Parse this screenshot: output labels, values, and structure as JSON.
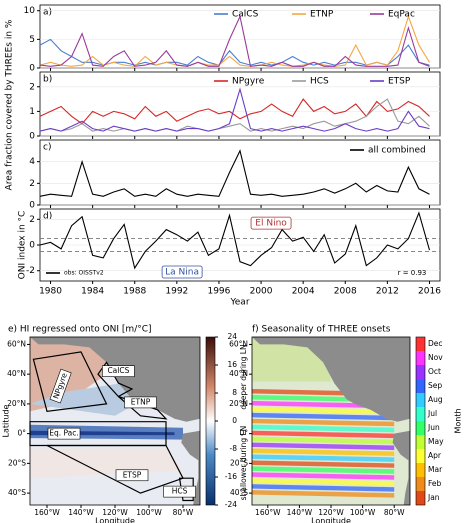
{
  "ylabel_top": "Area fraction covered by THREEs in %",
  "chart_data": [
    {
      "type": "line",
      "title": "a)",
      "xlim": [
        1979,
        2017
      ],
      "ylim": [
        0,
        11
      ],
      "yticks": [
        0,
        5,
        10
      ],
      "legend": "top",
      "x": [
        1979,
        1980,
        1981,
        1982,
        1983,
        1984,
        1985,
        1986,
        1987,
        1988,
        1989,
        1990,
        1991,
        1992,
        1993,
        1994,
        1995,
        1996,
        1997,
        1998,
        1999,
        2000,
        2001,
        2002,
        2003,
        2004,
        2005,
        2006,
        2007,
        2008,
        2009,
        2010,
        2011,
        2012,
        2013,
        2014,
        2015,
        2016
      ],
      "series": [
        {
          "name": "CalCS",
          "color": "#4a7fd4",
          "values": [
            4,
            5,
            3,
            2,
            1,
            1,
            0.5,
            1,
            1,
            0.5,
            1,
            0.5,
            1,
            1,
            0.5,
            2,
            1,
            0.5,
            3,
            1,
            0.5,
            1,
            0.5,
            1,
            2,
            1,
            0.5,
            1,
            0.5,
            1,
            1,
            0.5,
            1,
            0.5,
            2,
            4,
            1,
            0.5
          ]
        },
        {
          "name": "ETNP",
          "color": "#f5a742",
          "values": [
            0.5,
            1,
            0.5,
            0.3,
            0.5,
            2,
            0.5,
            1,
            0.5,
            0.3,
            2,
            0.5,
            1,
            0.5,
            0.3,
            1,
            0.5,
            0.5,
            2,
            0.5,
            0.3,
            0.5,
            1,
            0.5,
            0.3,
            0.5,
            1,
            0.5,
            0.3,
            0.5,
            4,
            0.5,
            1,
            0.5,
            3,
            9,
            4,
            1
          ]
        },
        {
          "name": "EqPac",
          "color": "#9b3a9b",
          "values": [
            0.5,
            0.3,
            0.5,
            2,
            6,
            0.5,
            0.3,
            2,
            3,
            0.3,
            0.5,
            1,
            3,
            0.5,
            0.3,
            1,
            0.3,
            0.3,
            5,
            9,
            0.3,
            0.5,
            0.3,
            1,
            0.3,
            0.3,
            1,
            0.3,
            0.3,
            2,
            0.5,
            0.3,
            0.3,
            0.3,
            0.5,
            7,
            1,
            0.3
          ]
        }
      ]
    },
    {
      "type": "line",
      "title": "b)",
      "xlim": [
        1979,
        2017
      ],
      "ylim": [
        0,
        2.6
      ],
      "yticks": [
        0,
        1,
        2
      ],
      "legend": "top",
      "x": [
        1979,
        1980,
        1981,
        1982,
        1983,
        1984,
        1985,
        1986,
        1987,
        1988,
        1989,
        1990,
        1991,
        1992,
        1993,
        1994,
        1995,
        1996,
        1997,
        1998,
        1999,
        2000,
        2001,
        2002,
        2003,
        2004,
        2005,
        2006,
        2007,
        2008,
        2009,
        2010,
        2011,
        2012,
        2013,
        2014,
        2015,
        2016
      ],
      "series": [
        {
          "name": "NPgyre",
          "color": "#d62728",
          "values": [
            0.8,
            1,
            1.2,
            0.8,
            0.5,
            1,
            0.8,
            1,
            0.9,
            0.7,
            1.2,
            0.8,
            1,
            0.6,
            0.8,
            1,
            1.1,
            0.9,
            1,
            0.7,
            0.9,
            1,
            1.3,
            1,
            0.8,
            1.5,
            1,
            1.2,
            0.9,
            1,
            1.3,
            0.8,
            1.4,
            1,
            1.1,
            1.4,
            1.2,
            0.8
          ]
        },
        {
          "name": "HCS",
          "color": "#999999",
          "values": [
            0.2,
            0.3,
            0.2,
            0.3,
            0.5,
            0.2,
            0.3,
            0.2,
            0.3,
            0.2,
            0.3,
            0.2,
            0.3,
            0.2,
            0.4,
            0.3,
            0.2,
            0.3,
            0.4,
            0.5,
            0.2,
            0.3,
            0.2,
            0.3,
            0.4,
            0.3,
            0.5,
            0.6,
            0.4,
            0.5,
            0.6,
            0.8,
            1.2,
            1.5,
            0.6,
            0.5,
            0.8,
            0.4
          ]
        },
        {
          "name": "ETSP",
          "color": "#6a3cc9",
          "values": [
            0.2,
            0.3,
            0.2,
            0.4,
            0.6,
            0.3,
            0.2,
            0.4,
            0.3,
            0.2,
            0.3,
            0.2,
            0.3,
            0.2,
            0.3,
            0.3,
            0.2,
            0.3,
            0.5,
            1.9,
            0.3,
            0.2,
            0.3,
            0.2,
            0.3,
            0.4,
            0.3,
            0.2,
            0.3,
            0.5,
            0.3,
            0.2,
            0.3,
            0.2,
            0.3,
            1,
            0.4,
            0.3
          ]
        }
      ]
    },
    {
      "type": "line",
      "title": "c)",
      "xlim": [
        1979,
        2017
      ],
      "ylim": [
        0,
        6
      ],
      "yticks": [
        0,
        2,
        4
      ],
      "legend": "right",
      "x": [
        1979,
        1980,
        1981,
        1982,
        1983,
        1984,
        1985,
        1986,
        1987,
        1988,
        1989,
        1990,
        1991,
        1992,
        1993,
        1994,
        1995,
        1996,
        1997,
        1998,
        1999,
        2000,
        2001,
        2002,
        2003,
        2004,
        2005,
        2006,
        2007,
        2008,
        2009,
        2010,
        2011,
        2012,
        2013,
        2014,
        2015,
        2016
      ],
      "series": [
        {
          "name": "all combined",
          "color": "#000000",
          "values": [
            0.8,
            1,
            0.9,
            0.8,
            4,
            1,
            0.8,
            1.2,
            1.5,
            0.8,
            1,
            0.8,
            1.5,
            1,
            0.8,
            1,
            0.9,
            0.8,
            3,
            5,
            1,
            0.9,
            1,
            0.8,
            0.9,
            1,
            1.2,
            1.5,
            1.1,
            1.5,
            2,
            1.2,
            1.8,
            1.3,
            1.2,
            3.5,
            1.5,
            1
          ]
        }
      ]
    },
    {
      "type": "line",
      "title": "d)",
      "ylabel": "ONI index in °C",
      "xlabel": "Year",
      "xlim": [
        1979,
        2017
      ],
      "ylim": [
        -2.8,
        2.8
      ],
      "yticks": [
        -2,
        0,
        2
      ],
      "xticks": [
        1980,
        1984,
        1988,
        1992,
        1996,
        2000,
        2004,
        2008,
        2012,
        2016
      ],
      "legend": "bottom-left",
      "reference_lines": [
        -0.5,
        0.5
      ],
      "annotations": [
        "El Nino",
        "La Nina",
        "r = 0.93"
      ],
      "x": [
        1979,
        1980,
        1981,
        1982,
        1983,
        1984,
        1985,
        1986,
        1987,
        1988,
        1989,
        1990,
        1991,
        1992,
        1993,
        1994,
        1995,
        1996,
        1997,
        1998,
        1999,
        2000,
        2001,
        2002,
        2003,
        2004,
        2005,
        2006,
        2007,
        2008,
        2009,
        2010,
        2011,
        2012,
        2013,
        2014,
        2015,
        2016
      ],
      "series": [
        {
          "name": "obs: OISSTv2",
          "color": "#000000",
          "values": [
            0,
            0.2,
            -0.3,
            1.5,
            2.2,
            -0.8,
            -1,
            0.5,
            1.6,
            -1.8,
            -0.5,
            0.3,
            1.2,
            0.8,
            0.3,
            1,
            -0.8,
            -0.3,
            2.3,
            -1.3,
            -1.6,
            -0.8,
            -0.2,
            1.2,
            0.3,
            0.6,
            -0.5,
            0.8,
            -1.4,
            -0.7,
            1.5,
            -1.6,
            -1,
            0,
            -0.3,
            0.5,
            2.5,
            -0.4
          ]
        }
      ]
    },
    {
      "type": "map",
      "title": "e) HI regressed onto ONI [m/°C]",
      "xlabel": "Longitude",
      "ylabel": "Latitude",
      "xlim": [
        -170,
        -70
      ],
      "ylim": [
        -48,
        65
      ],
      "xticks": [
        {
          "value": -160,
          "label": "160°W"
        },
        {
          "value": -140,
          "label": "140°W"
        },
        {
          "value": -120,
          "label": "120°W"
        },
        {
          "value": -100,
          "label": "100°W"
        },
        {
          "value": -80,
          "label": "80°W"
        }
      ],
      "yticks": [
        {
          "value": 60,
          "label": "60°N"
        },
        {
          "value": 40,
          "label": "40°N"
        },
        {
          "value": 20,
          "label": "20°N"
        },
        {
          "value": 0,
          "label": "0°"
        },
        {
          "value": -20,
          "label": "20°S"
        },
        {
          "value": -40,
          "label": "40°S"
        }
      ],
      "regions": [
        "CalCS",
        "ETNP",
        "NPgyre",
        "Eq. Pac.",
        "ETSP",
        "HCS"
      ],
      "colorbar": {
        "lim": [
          -24,
          24
        ],
        "ticks": [
          -24,
          -16,
          -8,
          0,
          8,
          16,
          24
        ],
        "labels": [
          "deeper during LN",
          "shallower during LN"
        ]
      }
    },
    {
      "type": "map",
      "title": "f) Seasonality of THREE onsets",
      "xlabel": "Longitude",
      "xlim": [
        -170,
        -70
      ],
      "ylim": [
        -48,
        65
      ],
      "xticks": [
        {
          "value": -160,
          "label": "160°W"
        },
        {
          "value": -140,
          "label": "140°W"
        },
        {
          "value": -120,
          "label": "120°W"
        },
        {
          "value": -100,
          "label": "100°W"
        },
        {
          "value": -80,
          "label": "80°W"
        }
      ],
      "yticks": [
        {
          "value": 60,
          "label": "60°N"
        },
        {
          "value": 40,
          "label": "40°N"
        },
        {
          "value": 20,
          "label": "20°N"
        },
        {
          "value": 0,
          "label": "0°"
        },
        {
          "value": -20,
          "label": "20°S"
        },
        {
          "value": -40,
          "label": "40°S"
        }
      ],
      "colorbar": {
        "label": "Month",
        "categories": [
          "Jan",
          "Feb",
          "Mar",
          "Apr",
          "May",
          "Jun",
          "Jul",
          "Aug",
          "Sep",
          "Oct",
          "Nov",
          "Dec"
        ],
        "colors": [
          "#e04a1a",
          "#f08a1a",
          "#ffbf00",
          "#ffff33",
          "#bfff33",
          "#33ff66",
          "#33ffcc",
          "#33ccff",
          "#3366ff",
          "#9933ff",
          "#ff33ff",
          "#ff3333"
        ]
      }
    }
  ]
}
